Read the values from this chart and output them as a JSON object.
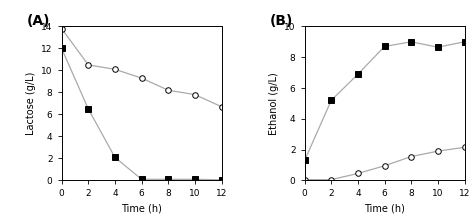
{
  "panel_A": {
    "label": "(A)",
    "time": [
      0,
      2,
      4,
      6,
      8,
      10,
      12
    ],
    "filled": [
      12.0,
      6.5,
      2.1,
      0.1,
      0.1,
      0.1,
      0.05
    ],
    "open": [
      13.8,
      10.5,
      10.1,
      9.3,
      8.2,
      7.8,
      6.7
    ],
    "ylabel": "Lactose (g/L)",
    "xlabel": "Time (h)",
    "ylim": [
      0,
      14
    ],
    "yticks": [
      0,
      2,
      4,
      6,
      8,
      10,
      12,
      14
    ],
    "xlim": [
      0,
      12
    ],
    "xticks": [
      0,
      2,
      4,
      6,
      8,
      10,
      12
    ]
  },
  "panel_B": {
    "label": "(B)",
    "time": [
      0,
      2,
      4,
      6,
      8,
      10,
      12
    ],
    "filled": [
      1.3,
      5.2,
      6.9,
      8.7,
      9.0,
      8.65,
      9.0
    ],
    "open": [
      0.05,
      0.05,
      0.45,
      0.95,
      1.55,
      1.9,
      2.15
    ],
    "ylabel": "Ethanol (g/L)",
    "xlabel": "Time (h)",
    "ylim": [
      0,
      10
    ],
    "yticks": [
      0,
      2,
      4,
      6,
      8,
      10
    ],
    "xlim": [
      0,
      12
    ],
    "xticks": [
      0,
      2,
      4,
      6,
      8,
      10,
      12
    ]
  },
  "line_color": "#aaaaaa",
  "filled_marker": "s",
  "open_marker": "o",
  "marker_size": 4,
  "line_width": 0.9,
  "label_fontsize": 7,
  "tick_fontsize": 6.5,
  "panel_label_fontsize": 10
}
